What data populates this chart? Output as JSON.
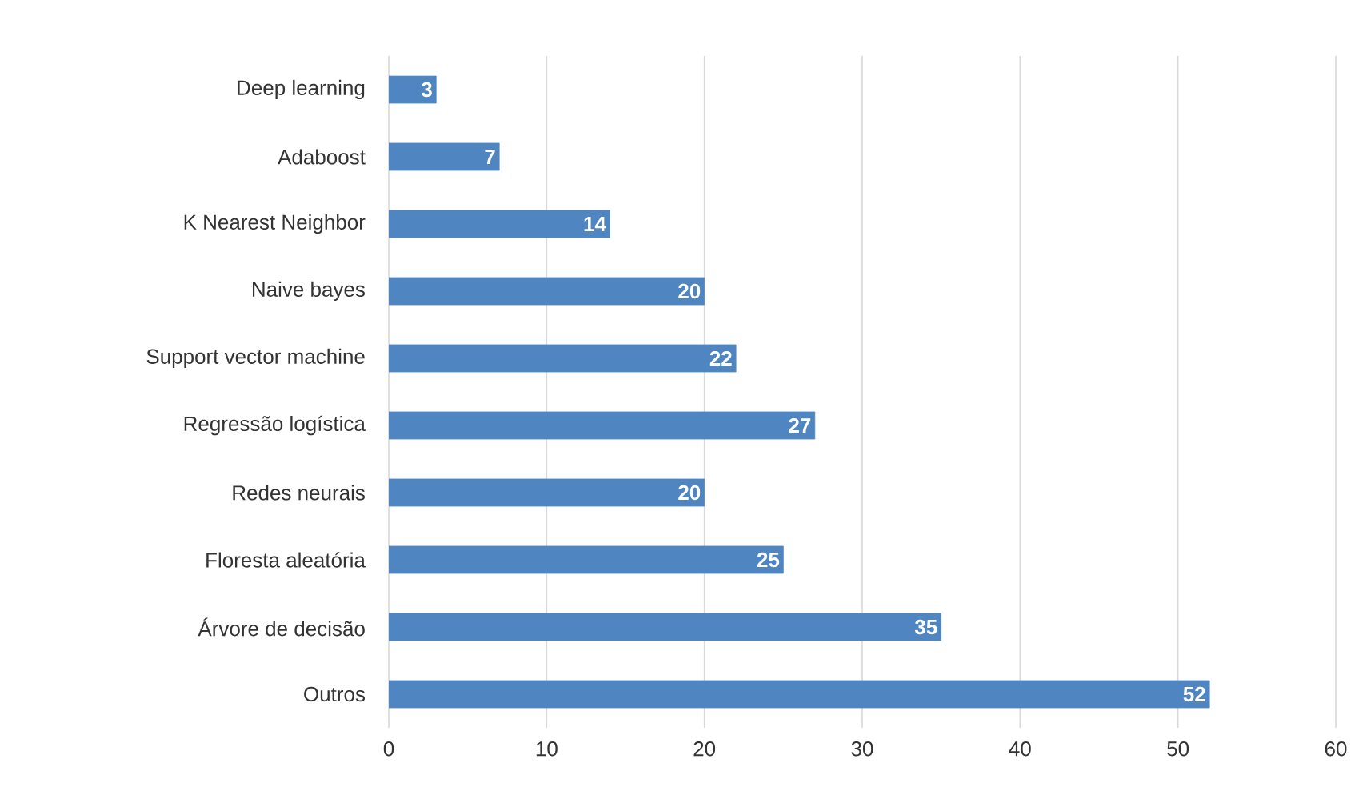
{
  "chart_data": {
    "type": "bar",
    "orientation": "horizontal",
    "categories": [
      "Deep learning",
      "Adaboost",
      "K Nearest Neighbor",
      "Naive bayes",
      "Support vector machine",
      "Regressão logística",
      "Redes neurais",
      "Floresta aleatória",
      "Árvore de decisão",
      "Outros"
    ],
    "values": [
      3,
      7,
      14,
      20,
      22,
      27,
      20,
      25,
      35,
      52
    ],
    "color": "#4f86c1",
    "xlim": [
      0,
      60
    ],
    "xticks": [
      0,
      10,
      20,
      30,
      40,
      50,
      60
    ],
    "grid": "x",
    "data_labels": true
  }
}
